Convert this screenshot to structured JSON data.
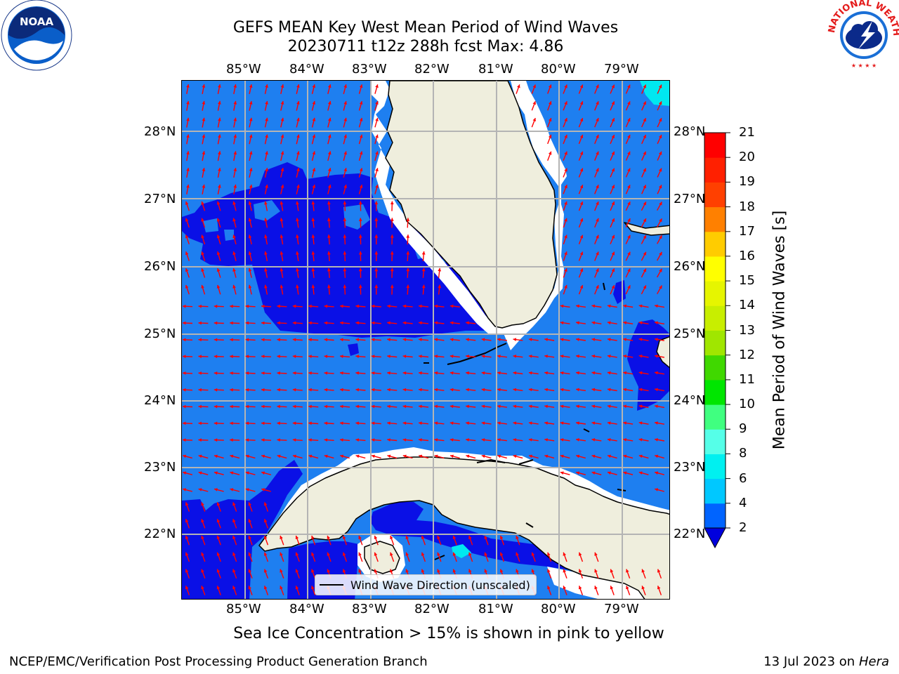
{
  "title": {
    "line1": "GEFS MEAN Key West Mean Period of Wind Waves",
    "line2": "20230711 t12z 288h fcst   Max: 4.86"
  },
  "logos": {
    "left": {
      "icon": "noaa-logo-icon",
      "text": "NOAA"
    },
    "right": {
      "icon": "nws-logo-icon",
      "text": "NATIONAL WEATHER SERVICE"
    }
  },
  "map": {
    "lon_labels": [
      "85°W",
      "84°W",
      "83°W",
      "82°W",
      "81°W",
      "80°W",
      "79°W"
    ],
    "lat_labels": [
      "28°N",
      "27°N",
      "26°N",
      "25°N",
      "24°N",
      "23°N",
      "22°N"
    ],
    "colors": {
      "ocean_2_4": "#1e7ff0",
      "ocean_low": "#0a10e6",
      "ocean_4_6": "#00e8f0",
      "land": "#efeedd",
      "arrow": "#ff0000",
      "grid": "#b4b4b4"
    },
    "legend_label": "Wind Wave Direction (unscaled)"
  },
  "colorbar": {
    "label": "Mean Period of Wind Waves [s]",
    "ticks": [
      "2",
      "4",
      "6",
      "8",
      "9",
      "10",
      "11",
      "12",
      "13",
      "14",
      "15",
      "16",
      "17",
      "18",
      "19",
      "20",
      "21"
    ],
    "colors": [
      "#0064ff",
      "#00c8ff",
      "#00f0f0",
      "#55ffe8",
      "#a0fff0",
      "#40ff80",
      "#00e600",
      "#40d800",
      "#a0e600",
      "#c8ee00",
      "#e6f500",
      "#ffff00",
      "#ffcc00",
      "#ffaa00",
      "#ff8000",
      "#ff4000",
      "#ff2000",
      "#ff0000"
    ],
    "under_color": "#0000dd"
  },
  "subtitle": "Sea Ice Concentration > 15% is shown in pink to yellow",
  "footer": {
    "left": "NCEP/EMC/Verification Post Processing Product Generation Branch",
    "right_date": "13 Jul 2023 on ",
    "right_host": "Hera"
  }
}
